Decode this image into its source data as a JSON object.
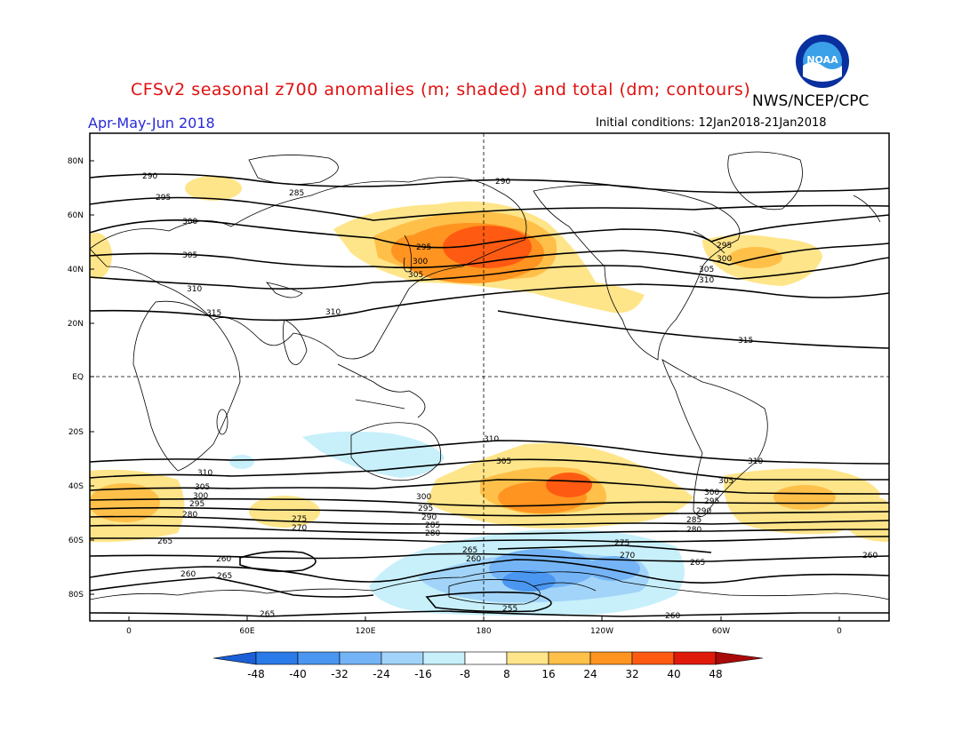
{
  "header": {
    "title": "CFSv2 seasonal z700 anomalies (m; shaded) and total (dm; contours)",
    "agency": "NWS/NCEP/CPC",
    "period": "Apr-May-Jun 2018",
    "initial_conditions": "Initial conditions: 12Jan2018-21Jan2018",
    "logo_text": "NOAA"
  },
  "map": {
    "lat_labels": [
      "80N",
      "60N",
      "40N",
      "20N",
      "EQ",
      "20S",
      "40S",
      "60S",
      "80S"
    ],
    "lon_labels": [
      "0",
      "60E",
      "120E",
      "180",
      "120W",
      "60W",
      "0"
    ],
    "contour_labels": {
      "north": [
        "290",
        "285",
        "295",
        "300",
        "305",
        "310",
        "315",
        "295",
        "300",
        "305",
        "290",
        "295",
        "300",
        "305",
        "310",
        "310",
        "315"
      ],
      "south": [
        "310",
        "305",
        "300",
        "295",
        "290",
        "285",
        "280",
        "275",
        "270",
        "265",
        "260",
        "255",
        "305",
        "300",
        "295",
        "290",
        "285",
        "280",
        "310",
        "265",
        "260",
        "265",
        "260",
        "270",
        "275",
        "265",
        "260"
      ]
    },
    "colors": {
      "land_outline": "#000000",
      "contour": "#000000",
      "positive_anomaly": "#ff8c00",
      "negative_anomaly": "#5aa6ff"
    }
  },
  "colorbar": {
    "ticks": [
      "-48",
      "-40",
      "-32",
      "-24",
      "-16",
      "-8",
      "8",
      "16",
      "24",
      "32",
      "40",
      "48"
    ],
    "colors": [
      "#1a5fd6",
      "#2a7ae8",
      "#4a96f0",
      "#74b4f6",
      "#a2d4f9",
      "#c8f0fb",
      "#ffffff",
      "#ffe58a",
      "#ffc04a",
      "#ff9420",
      "#ff5a12",
      "#e01a0a",
      "#a80a0a"
    ]
  }
}
